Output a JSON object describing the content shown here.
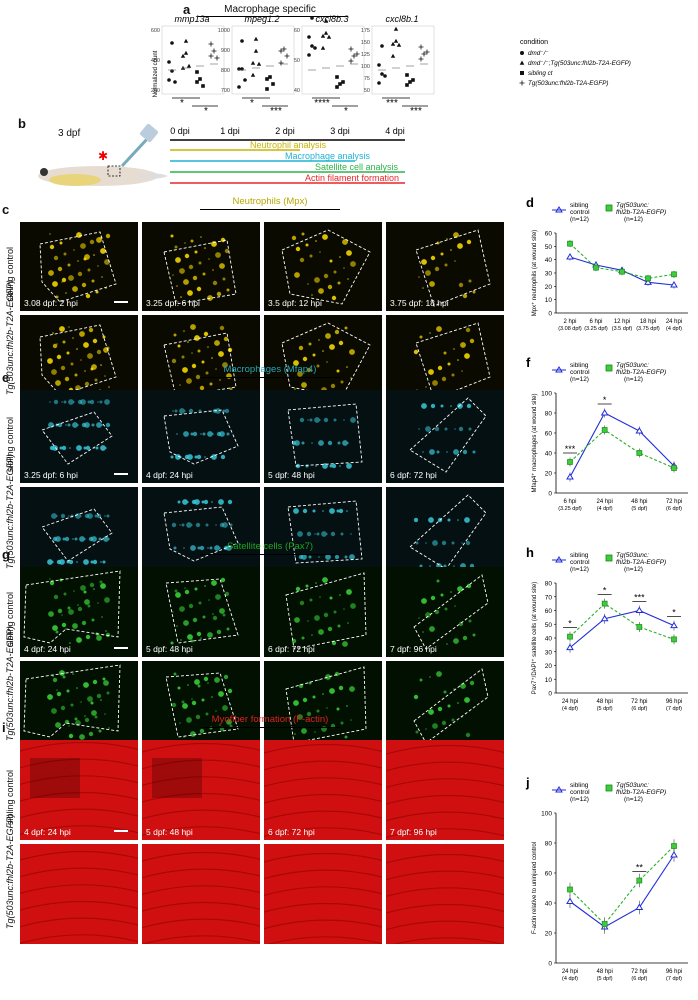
{
  "panels": {
    "a": {
      "label": "a",
      "title": "Macrophage specific",
      "ylabel": "Normalized count",
      "genes": [
        "mmp13a",
        "mpeg1.2",
        "cxcl8b.3",
        "cxcl8b.1"
      ],
      "legend": {
        "title": "condition",
        "items": [
          "dmd⁻/⁻",
          "dmd⁻/⁻;Tg(503unc:fhl2b-T2A-EGFP)",
          "sibling ct",
          "Tg(503unc:fhl2b-T2A-EGFP)"
        ]
      },
      "sig": [
        [
          "*",
          "*"
        ],
        [
          "*",
          "***"
        ],
        [
          "****",
          "*"
        ],
        [
          "***",
          "***"
        ]
      ]
    },
    "b": {
      "label": "b",
      "stage": "3 dpf",
      "timeline": [
        "0 dpi",
        "1 dpi",
        "2 dpi",
        "3 dpi",
        "4 dpi"
      ],
      "analyses": [
        {
          "name": "Neutrophil analysis",
          "color": "#c8b400"
        },
        {
          "name": "Macrophage analysis",
          "color": "#1fb4d2"
        },
        {
          "name": "Satellite cell analysis",
          "color": "#2db34a"
        },
        {
          "name": "Actin filament formation",
          "color": "#e8262a"
        }
      ]
    },
    "c": {
      "label": "c",
      "header": "Neutrophils (Mpx)",
      "rows": [
        "sibling control",
        "Tg(503unc:fhl2b-T2A-EGFP)"
      ],
      "times": [
        "3.08 dpf: 2 hpi",
        "3.25 dpf: 6 hpi",
        "3.5 dpf: 12 hpi",
        "3.75 dpf: 18 hpi"
      ]
    },
    "e": {
      "label": "e",
      "header": "Macrophages (Mfap4)",
      "rows": [
        "sibling control",
        "Tg(503unc:fhl2b-T2A-EGFP)"
      ],
      "times": [
        "3.25 dpf: 6 hpi",
        "4 dpf: 24 hpi",
        "5 dpf: 48 hpi",
        "6 dpf: 72 hpi"
      ]
    },
    "g": {
      "label": "g",
      "header": "Satellite cells (Pax7)",
      "rows": [
        "sibling control",
        "Tg(503unc:fhl2b-T2A-EGFP)"
      ],
      "times": [
        "4 dpf: 24 hpi",
        "5 dpf: 48 hpi",
        "6 dpf: 72 hpi",
        "7  dpf: 96 hpi"
      ]
    },
    "i": {
      "label": "i",
      "header": "Myofiber formation (F-actin)",
      "rows": [
        "sibling control",
        "Tg(503unc:fhl2b-T2A-EGFP)"
      ],
      "times": [
        "4 dpf: 24 hpi",
        "5 dpf: 48 hpi",
        "6 dpf: 72 hpi",
        "7  dpf: 96 hpi"
      ]
    }
  },
  "chart_data": [
    {
      "id": "d",
      "type": "line",
      "legend": [
        "sibling control (n=12)",
        "Tg(503unc: fhl2b-T2A-EGFP) (n=12)"
      ],
      "ylabel": "Mpx⁺ neutrophils (at wound site)",
      "categories": [
        "2 hpi (3.08 dpf)",
        "6 hpi (3.25 dpf)",
        "12 hpi (3.5 dpf)",
        "18 hpi (3.75 dpf)",
        "24 hpi (4 dpf)"
      ],
      "ylim": [
        0,
        60
      ],
      "yticks": [
        0,
        10,
        20,
        30,
        40,
        50,
        60
      ],
      "series": [
        {
          "name": "sibling control",
          "values": [
            42,
            36,
            32,
            23,
            21
          ]
        },
        {
          "name": "Tg(503unc:fhl2b-T2A-EGFP)",
          "values": [
            52,
            34,
            31,
            26,
            29
          ]
        }
      ],
      "sig": []
    },
    {
      "id": "f",
      "type": "line",
      "legend": [
        "sibling control (n=12)",
        "Tg(503unc: fhl2b-T2A-EGFP) (n=12)"
      ],
      "ylabel": "Mfap4⁺ macrophages (at wound site)",
      "categories": [
        "6 hpi (3.25 dpf)",
        "24 hpi (4 dpf)",
        "48 hpi (5 dpf)",
        "72 hpi (6 dpf)"
      ],
      "ylim": [
        0,
        100
      ],
      "yticks": [
        0,
        20,
        40,
        60,
        80,
        100
      ],
      "series": [
        {
          "name": "sibling control",
          "values": [
            16,
            80,
            62,
            27
          ]
        },
        {
          "name": "Tg(503unc:fhl2b-T2A-EGFP)",
          "values": [
            31,
            63,
            40,
            25
          ]
        }
      ],
      "sig": [
        {
          "cat": 0,
          "text": "***"
        },
        {
          "cat": 1,
          "text": "*"
        }
      ]
    },
    {
      "id": "h",
      "type": "line",
      "legend": [
        "sibling control (n=12)",
        "Tg(503unc: fhl2b-T2A-EGFP) (n=12)"
      ],
      "ylabel": "Pax7⁺/DAPI⁺ satellite cells (at wound site)",
      "categories": [
        "24 hpi (4 dpf)",
        "48 hpi (5 dpf)",
        "72 hpi (6 dpf)",
        "96 hpi (7 dpf)"
      ],
      "ylim": [
        0,
        80
      ],
      "yticks": [
        0,
        10,
        20,
        30,
        40,
        50,
        60,
        70,
        80
      ],
      "series": [
        {
          "name": "sibling control",
          "values": [
            33,
            54,
            60,
            49
          ]
        },
        {
          "name": "Tg(503unc:fhl2b-T2A-EGFP)",
          "values": [
            41,
            65,
            48,
            39
          ]
        }
      ],
      "sig": [
        {
          "cat": 0,
          "text": "*"
        },
        {
          "cat": 1,
          "text": "*"
        },
        {
          "cat": 2,
          "text": "***"
        },
        {
          "cat": 3,
          "text": "*"
        }
      ]
    },
    {
      "id": "j",
      "type": "line",
      "legend": [
        "sibling control (n=12)",
        "Tg(503unc: fhl2b-T2A-EGFP) (n=12)"
      ],
      "ylabel": "F-actin relative to uninjured control",
      "categories": [
        "24 hpi (4 dpf)",
        "48 hpi (5 dpf)",
        "72 hpi (6 dpf)",
        "96 hpi (7 dpf)"
      ],
      "ylim": [
        0,
        100
      ],
      "yticks": [
        0,
        20,
        40,
        60,
        80,
        100
      ],
      "series": [
        {
          "name": "sibling control",
          "values": [
            41,
            24,
            37,
            72
          ]
        },
        {
          "name": "Tg(503unc:fhl2b-T2A-EGFP)",
          "values": [
            49,
            26,
            55,
            78
          ]
        }
      ],
      "sig": [
        {
          "cat": 2,
          "text": "**"
        }
      ]
    }
  ]
}
